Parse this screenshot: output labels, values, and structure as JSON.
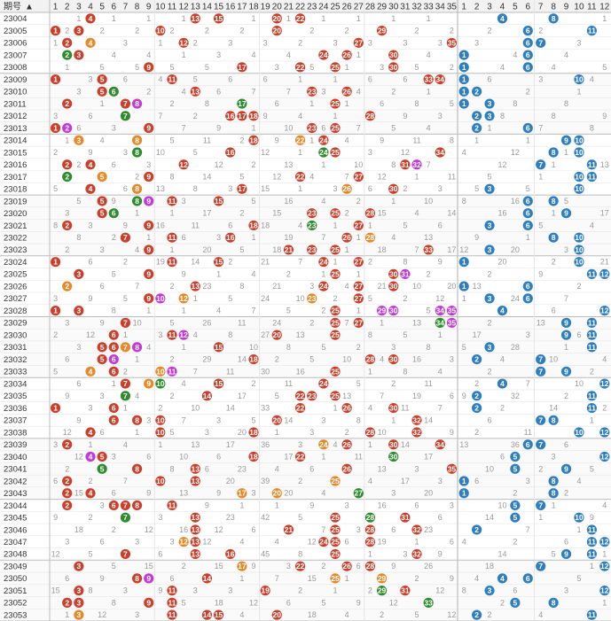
{
  "chart_data": {
    "type": "table",
    "title": "",
    "header": {
      "issue_label": "期号",
      "front_numbers": [
        "1",
        "2",
        "3",
        "4",
        "5",
        "6",
        "7",
        "8",
        "9",
        "10",
        "11",
        "12",
        "13",
        "14",
        "15",
        "16",
        "17",
        "18",
        "19",
        "20",
        "21",
        "22",
        "23",
        "24",
        "25",
        "26",
        "27",
        "28",
        "29",
        "30",
        "31",
        "32",
        "33",
        "34",
        "35"
      ],
      "back_numbers": [
        "1",
        "2",
        "3",
        "4",
        "5",
        "6",
        "7",
        "8",
        "9",
        "10",
        "11",
        "12"
      ]
    },
    "colors": {
      "front_ball": "#c9412c",
      "back_ball": "#2f7fbf",
      "repeat_ball": "#e58a2a",
      "consecutive_ball": "#2e8b2e",
      "special_ball": "#c23bd6",
      "grid_line": "#e6e6e6",
      "group_line": "#bcbcbc",
      "header_bg": "#f2f2f2",
      "alt_row_bg": "#fafafa"
    },
    "legend": {},
    "issues": [
      "23004",
      "23005",
      "23006",
      "23007",
      "23008",
      "23009",
      "23010",
      "23011",
      "23012",
      "23013",
      "23014",
      "23015",
      "23016",
      "23017",
      "23018",
      "23019",
      "23020",
      "23021",
      "23022",
      "23023",
      "23024",
      "23025",
      "23026",
      "23027",
      "23028",
      "23029",
      "23030",
      "23031",
      "23032",
      "23033",
      "23034",
      "23035",
      "23036",
      "23037",
      "23038",
      "23039",
      "23040",
      "23041",
      "23042",
      "23043",
      "23044",
      "23045",
      "23046",
      "23047",
      "23048",
      "23049",
      "23050",
      "23051",
      "23052",
      "23053"
    ],
    "front_draws": [
      [
        4,
        13,
        15,
        20,
        22
      ],
      [
        1,
        3,
        10,
        20,
        29
      ],
      [
        2,
        4,
        12,
        27,
        35
      ],
      [
        2,
        3,
        24,
        26,
        30
      ],
      [
        9,
        17,
        22,
        25,
        30
      ],
      [
        1,
        5,
        11,
        33,
        34
      ],
      [
        5,
        6,
        13,
        23,
        26
      ],
      [
        2,
        7,
        8,
        17,
        25
      ],
      [
        7,
        16,
        17,
        18,
        28
      ],
      [
        1,
        2,
        9,
        23,
        25
      ],
      [
        3,
        8,
        18,
        22,
        24
      ],
      [
        8,
        16,
        24,
        25,
        34
      ],
      [
        2,
        4,
        12,
        31,
        32
      ],
      [
        2,
        5,
        9,
        22,
        27
      ],
      [
        4,
        8,
        17,
        26,
        30
      ],
      [
        5,
        8,
        9,
        11,
        15
      ],
      [
        5,
        6,
        23,
        25,
        28
      ],
      [
        2,
        9,
        18,
        23,
        27
      ],
      [
        7,
        11,
        16,
        26,
        28
      ],
      [
        9,
        21,
        23,
        25,
        33
      ],
      [
        1,
        11,
        15,
        24,
        27
      ],
      [
        3,
        9,
        25,
        30,
        31
      ],
      [
        2,
        13,
        24,
        27,
        30
      ],
      [
        9,
        10,
        12,
        23,
        27
      ],
      [
        1,
        3,
        25,
        29,
        30,
        34,
        35
      ],
      [
        7,
        25,
        27,
        34,
        35
      ],
      [
        6,
        11,
        12,
        20,
        25
      ],
      [
        5,
        6,
        7,
        8,
        15
      ],
      [
        5,
        6,
        18,
        28,
        30
      ],
      [
        4,
        6,
        10,
        11,
        25
      ],
      [
        7,
        9,
        10,
        15,
        24
      ],
      [
        7,
        14,
        22,
        23,
        25
      ],
      [
        1,
        6,
        22,
        26,
        30
      ],
      [
        6,
        8,
        10,
        20,
        32
      ],
      [
        4,
        10,
        18,
        28,
        32
      ],
      [
        2,
        24,
        26,
        30,
        34
      ],
      [
        4,
        5,
        18,
        22,
        30
      ],
      [
        5,
        8,
        13,
        26,
        35
      ],
      [
        2,
        10,
        13,
        25
      ],
      [
        2,
        4,
        17,
        20,
        27
      ],
      [
        2,
        6,
        7,
        8,
        11
      ],
      [
        7,
        13,
        25,
        28,
        31
      ],
      [
        13,
        21,
        25,
        28,
        32
      ],
      [
        12,
        13,
        24,
        25,
        28
      ],
      [
        7,
        13,
        16,
        25,
        32
      ],
      [
        3,
        17,
        22,
        26,
        28
      ],
      [
        8,
        9,
        14,
        25,
        29
      ],
      [
        3,
        11,
        19,
        29,
        31
      ],
      [
        2,
        3,
        9,
        11,
        33
      ],
      [
        3,
        11,
        14,
        15,
        20
      ]
    ],
    "back_draws": [
      [
        4,
        8
      ],
      [
        6,
        11
      ],
      [
        6,
        7
      ],
      [
        1,
        6
      ],
      [
        1,
        6
      ],
      [
        1,
        10
      ],
      [
        1,
        2
      ],
      [
        1,
        3
      ],
      [
        2,
        3
      ],
      [
        2,
        6
      ],
      [
        9,
        10
      ],
      [
        8,
        10
      ],
      [
        7,
        11
      ],
      [
        10,
        11
      ],
      [
        3,
        10
      ],
      [
        6,
        8
      ],
      [
        6,
        9
      ],
      [
        3,
        6
      ],
      [
        8,
        10
      ],
      [
        3,
        10
      ],
      [
        1,
        10
      ],
      [
        11,
        12
      ],
      [
        1,
        6
      ],
      [
        3,
        6
      ],
      [
        4,
        12
      ],
      [
        9,
        11
      ],
      [
        9,
        11
      ],
      [
        3,
        11
      ],
      [
        2,
        7
      ],
      [
        7,
        9
      ],
      [
        4,
        12
      ],
      [
        2,
        11
      ],
      [
        2,
        11
      ],
      [
        7,
        8
      ],
      [
        10,
        12
      ],
      [
        6,
        7
      ],
      [
        5,
        12
      ],
      [
        5,
        9
      ],
      [
        1,
        8
      ],
      [
        1,
        8
      ],
      [
        5,
        7
      ],
      [
        5,
        10
      ],
      [
        2,
        11
      ],
      [
        11,
        12
      ],
      [
        9,
        11
      ],
      [
        7,
        12
      ],
      [
        4,
        6
      ],
      [
        3,
        12
      ],
      [
        5,
        8
      ],
      [
        2,
        11
      ]
    ],
    "highlights": {
      "23006": {
        "4": "repeat"
      },
      "23007": {
        "2": "consecutive"
      },
      "23010": {
        "6": "consecutive"
      },
      "23011": {
        "8": "special",
        "17": "consecutive"
      },
      "23012": {
        "7": "consecutive"
      },
      "23013": {
        "2": "special"
      },
      "23014": {
        "3": "repeat",
        "8": "repeat",
        "22": "repeat"
      },
      "23015": {
        "8": "consecutive",
        "24": "consecutive"
      },
      "23016": {
        "32": "special"
      },
      "23017": {
        "2": "consecutive",
        "5": "repeat"
      },
      "23018": {
        "8": "repeat",
        "26": "repeat"
      },
      "23019": {
        "8": "consecutive",
        "9": "special"
      },
      "23020": {
        "6": "consecutive"
      },
      "23021": {
        "23": "consecutive"
      },
      "23022": {
        "28": "repeat"
      },
      "23025": {
        "31": "special"
      },
      "23026": {
        "2": "repeat"
      },
      "23027": {
        "10": "special",
        "12": "repeat",
        "23": "repeat"
      },
      "23028": {
        "29": "special",
        "30": "special",
        "34": "special",
        "35": "special"
      },
      "23029": {
        "34": "consecutive",
        "35": "special"
      },
      "23030": {
        "12": "special",
        "35": "consecutive"
      },
      "23031": {
        "7": "repeat",
        "8": "special"
      },
      "23032": {
        "6": "special"
      },
      "23033": {
        "4": "repeat",
        "10": "repeat",
        "11": "special"
      },
      "23034": {
        "9": "repeat",
        "10": "consecutive"
      },
      "23035": {
        "7": "consecutive"
      },
      "23039": {
        "24": "repeat"
      },
      "23040": {
        "4": "special",
        "30": "consecutive"
      },
      "23041": {
        "5": "consecutive"
      },
      "23042": {
        "25": "repeat"
      },
      "23043": {
        "17": "repeat",
        "20": "repeat",
        "27": "consecutive"
      },
      "23045": {
        "7": "consecutive",
        "28": "consecutive"
      },
      "23047": {
        "12": "repeat"
      },
      "23049": {
        "17": "repeat"
      },
      "23050": {
        "9": "special",
        "25": "repeat",
        "29": "repeat"
      },
      "23051": {
        "29": "consecutive"
      },
      "23052": {
        "33": "consecutive"
      },
      "23053": {
        "3": "repeat"
      }
    }
  }
}
